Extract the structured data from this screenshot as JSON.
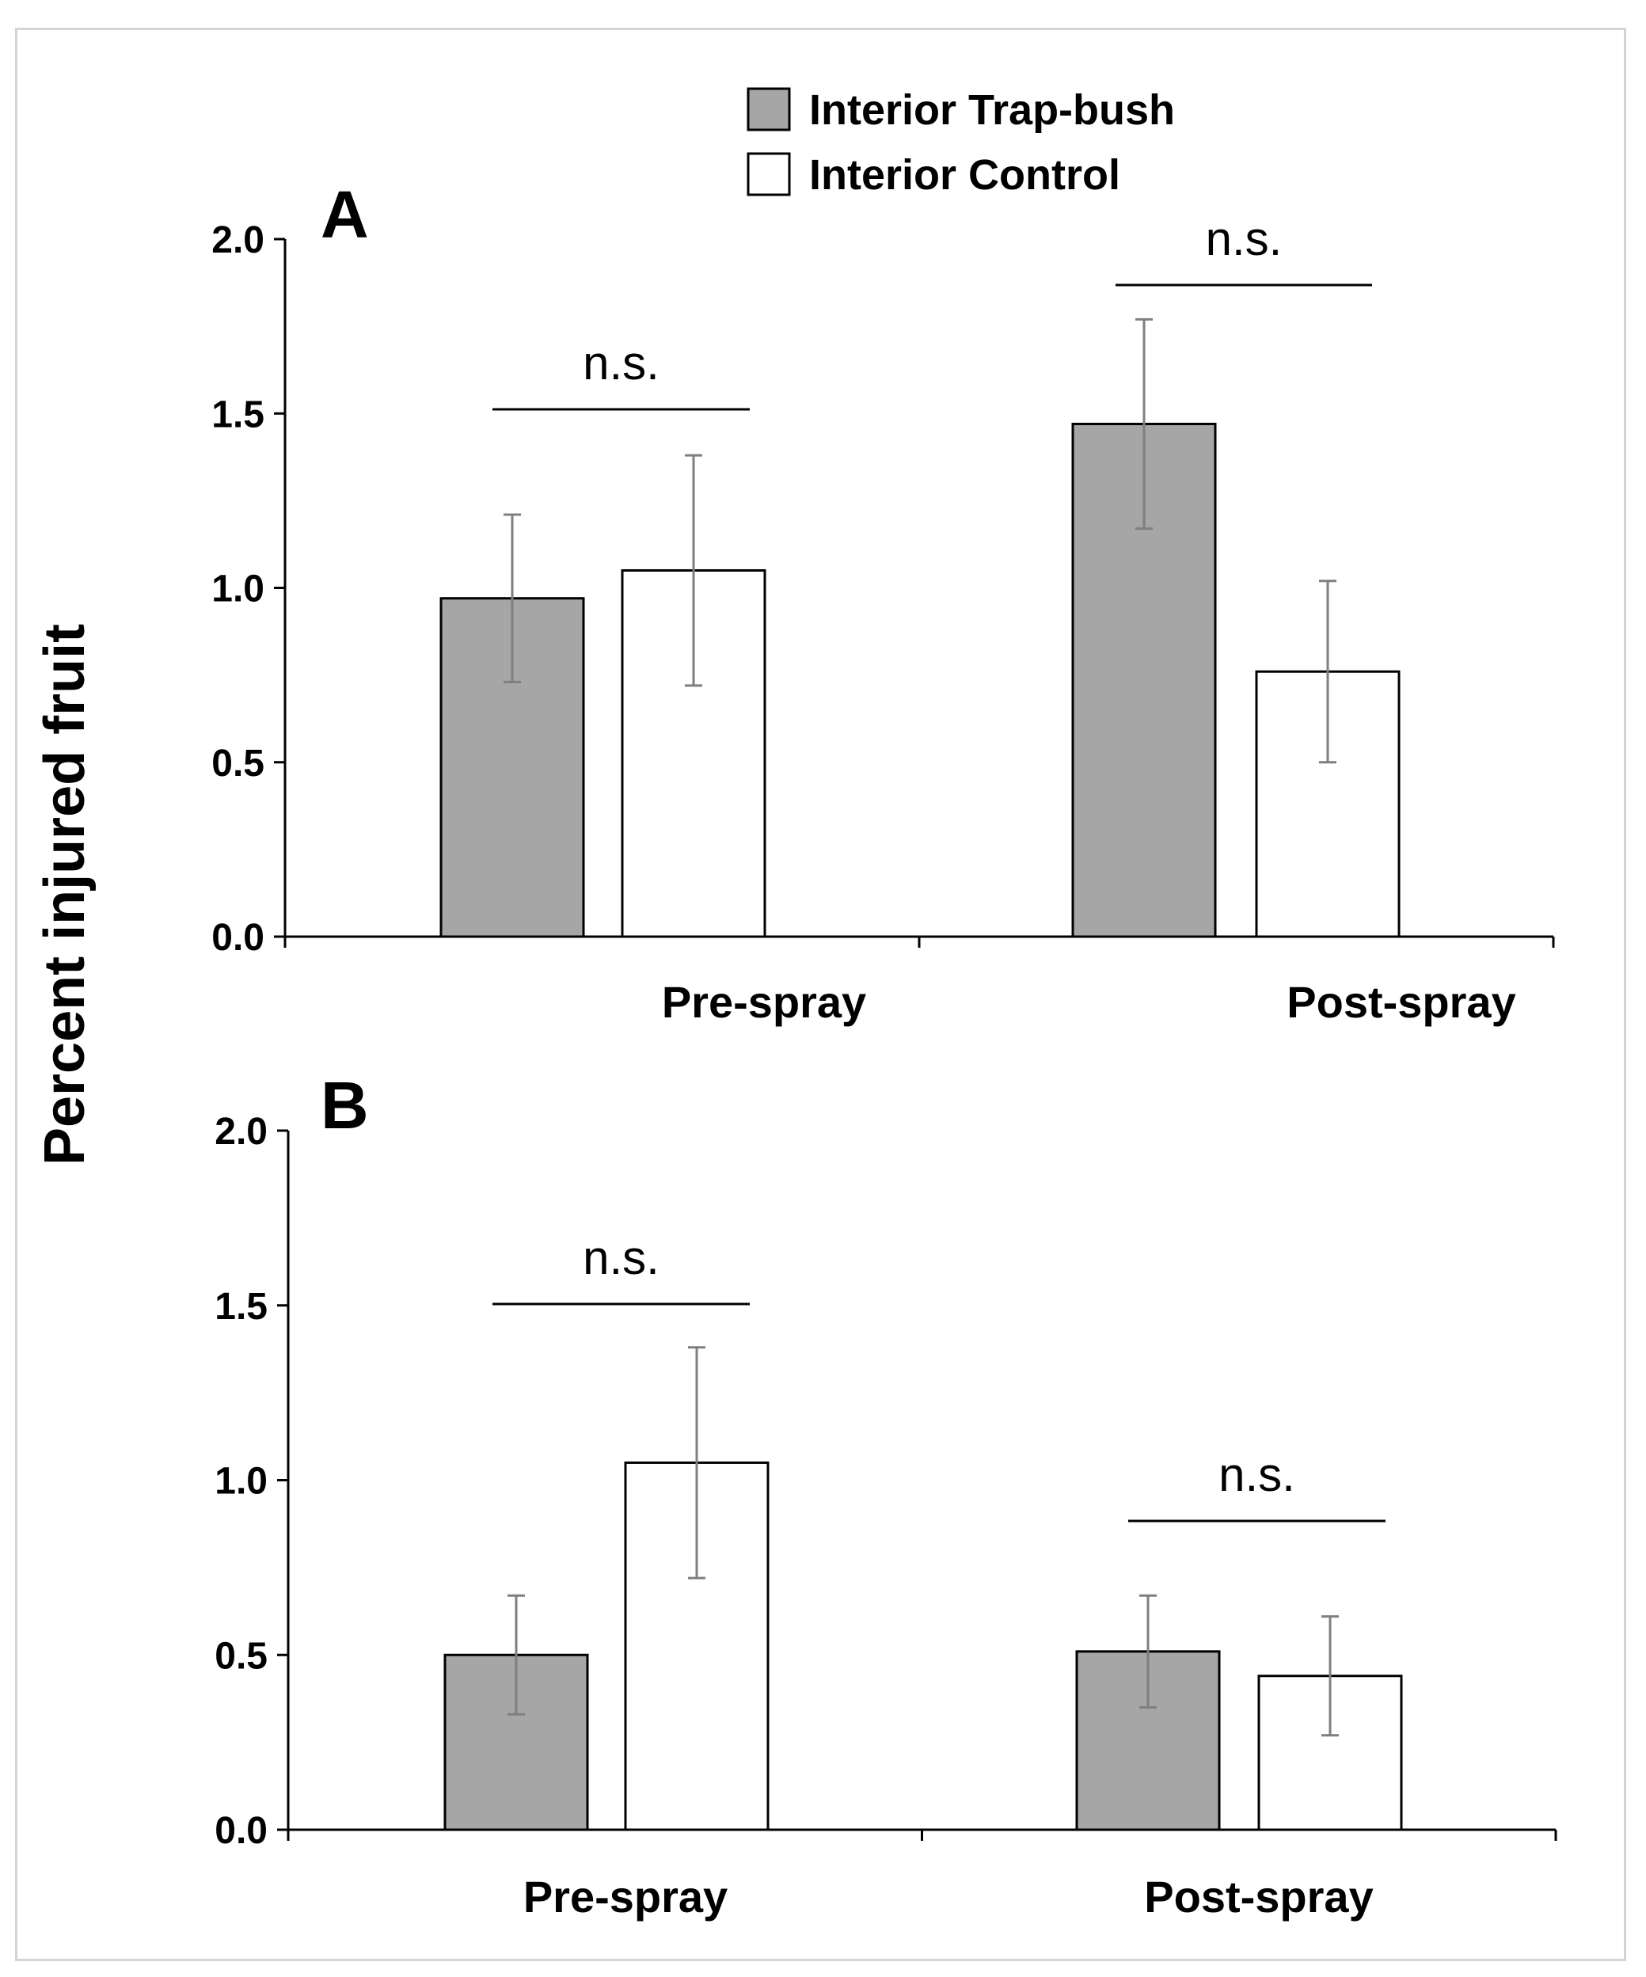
{
  "colors": {
    "trap_bush": "#a6a6a6",
    "control": "#ffffff",
    "bar_stroke": "#000000",
    "error_bar": "#7f7f7f"
  },
  "legend": {
    "items": [
      {
        "label": "Interior Trap-bush",
        "color": "#a6a6a6"
      },
      {
        "label": "Interior Control",
        "color": "#ffffff"
      }
    ]
  },
  "y_axis_label": "Percent injured fruit",
  "chart_data": [
    {
      "type": "bar",
      "panel_label": "A",
      "categories": [
        "Pre-spray",
        "Post-spray"
      ],
      "series": [
        {
          "name": "Interior Trap-bush",
          "values": [
            0.97,
            1.47
          ],
          "errors": [
            0.24,
            0.3
          ]
        },
        {
          "name": "Interior Control",
          "values": [
            1.05,
            0.76
          ],
          "errors": [
            0.33,
            0.26
          ]
        }
      ],
      "significance": [
        "n.s.",
        "n.s."
      ],
      "ylim": [
        0,
        2.0
      ],
      "yticks": [
        "0.0",
        "0.5",
        "1.0",
        "1.5",
        "2.0"
      ],
      "ylabel": "Percent injured fruit",
      "legend_position": "top"
    },
    {
      "type": "bar",
      "panel_label": "B",
      "categories": [
        "Pre-spray",
        "Post-spray"
      ],
      "series": [
        {
          "name": "Interior Trap-bush",
          "values": [
            0.5,
            0.51
          ],
          "errors": [
            0.17,
            0.16
          ]
        },
        {
          "name": "Interior Control",
          "values": [
            1.05,
            0.44
          ],
          "errors": [
            0.33,
            0.17
          ]
        }
      ],
      "significance": [
        "n.s.",
        "n.s."
      ],
      "ylim": [
        0,
        2.0
      ],
      "yticks": [
        "0.0",
        "0.5",
        "1.0",
        "1.5",
        "2.0"
      ],
      "ylabel": "Percent injured fruit"
    }
  ]
}
